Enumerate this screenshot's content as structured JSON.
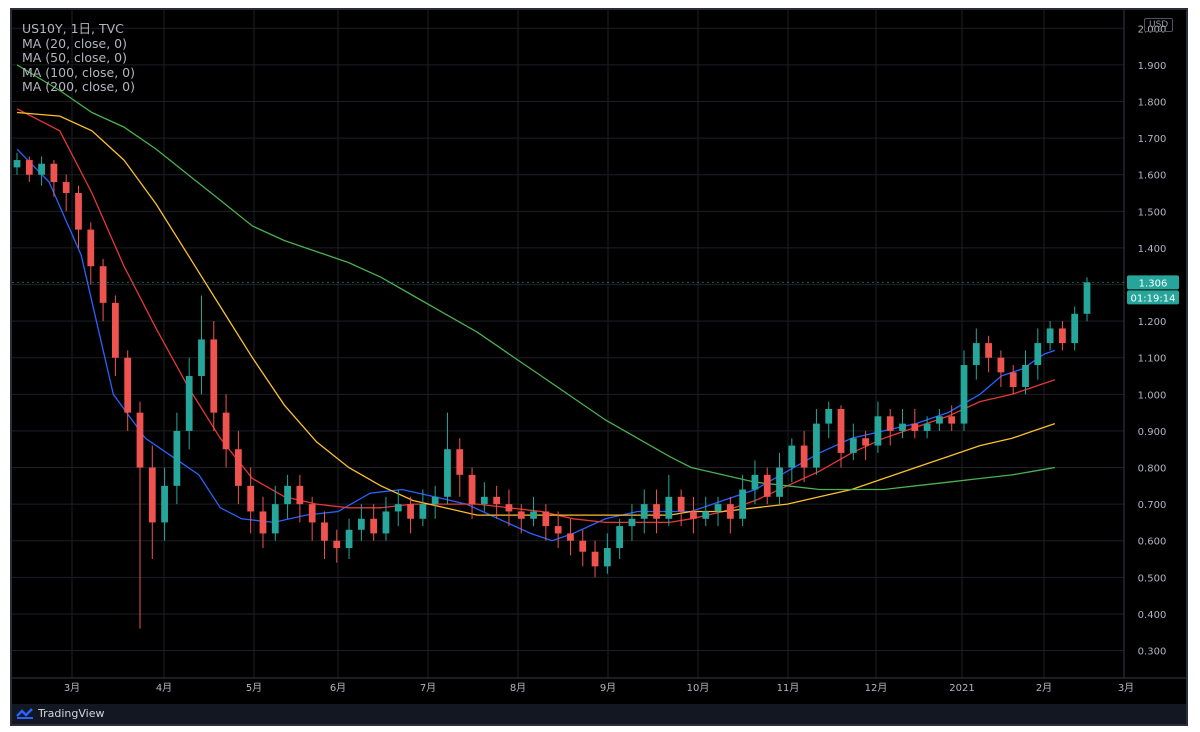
{
  "header": {
    "symbol_line": "US10Y, 1日, TVC",
    "ma_lines": [
      "MA (20, close, 0)",
      "MA (50, close, 0)",
      "MA (100, close, 0)",
      "MA (200, close, 0)"
    ]
  },
  "currency": "USD",
  "last_price_label": "1.306",
  "countdown_label": "01:19:14",
  "footer": {
    "brand": "TradingView"
  },
  "colors": {
    "background": "#000000",
    "up": "#26a69a",
    "down": "#ef5350",
    "ma20": "#2962ff",
    "ma50": "#e53935",
    "ma100": "#fbc02d",
    "ma200": "#4caf50",
    "price_tag": "#26a69a"
  },
  "chart_data": {
    "type": "candlestick",
    "y_ticks": [
      "2.000",
      "1.900",
      "1.800",
      "1.700",
      "1.600",
      "1.500",
      "1.400",
      "1.300",
      "1.200",
      "1.100",
      "1.000",
      "0.900",
      "0.800",
      "0.700",
      "0.600",
      "0.500",
      "0.400",
      "0.300"
    ],
    "x_ticks": [
      "3月",
      "4月",
      "5月",
      "6月",
      "7月",
      "8月",
      "9月",
      "10月",
      "11月",
      "12月",
      "2021",
      "2月",
      "3月"
    ],
    "ylim": [
      0.225,
      2.05
    ],
    "series": [
      {
        "name": "MA (20, close, 0)",
        "points": [
          [
            0,
            1.67
          ],
          [
            0.03,
            1.58
          ],
          [
            0.06,
            1.38
          ],
          [
            0.09,
            1.0
          ],
          [
            0.12,
            0.88
          ],
          [
            0.15,
            0.82
          ],
          [
            0.17,
            0.78
          ],
          [
            0.19,
            0.69
          ],
          [
            0.21,
            0.66
          ],
          [
            0.24,
            0.65
          ],
          [
            0.27,
            0.67
          ],
          [
            0.3,
            0.68
          ],
          [
            0.33,
            0.73
          ],
          [
            0.36,
            0.74
          ],
          [
            0.39,
            0.72
          ],
          [
            0.42,
            0.7
          ],
          [
            0.45,
            0.66
          ],
          [
            0.48,
            0.62
          ],
          [
            0.5,
            0.6
          ],
          [
            0.52,
            0.62
          ],
          [
            0.55,
            0.66
          ],
          [
            0.58,
            0.68
          ],
          [
            0.61,
            0.68
          ],
          [
            0.63,
            0.68
          ],
          [
            0.66,
            0.71
          ],
          [
            0.69,
            0.74
          ],
          [
            0.72,
            0.79
          ],
          [
            0.75,
            0.84
          ],
          [
            0.78,
            0.88
          ],
          [
            0.81,
            0.9
          ],
          [
            0.84,
            0.92
          ],
          [
            0.87,
            0.95
          ],
          [
            0.9,
            1.0
          ],
          [
            0.92,
            1.05
          ],
          [
            0.94,
            1.07
          ],
          [
            0.96,
            1.11
          ],
          [
            0.97,
            1.12
          ]
        ]
      },
      {
        "name": "MA (50, close, 0)",
        "points": [
          [
            0,
            1.78
          ],
          [
            0.04,
            1.72
          ],
          [
            0.07,
            1.55
          ],
          [
            0.1,
            1.35
          ],
          [
            0.13,
            1.18
          ],
          [
            0.16,
            1.02
          ],
          [
            0.19,
            0.88
          ],
          [
            0.22,
            0.77
          ],
          [
            0.25,
            0.72
          ],
          [
            0.28,
            0.7
          ],
          [
            0.31,
            0.69
          ],
          [
            0.34,
            0.69
          ],
          [
            0.37,
            0.7
          ],
          [
            0.4,
            0.7
          ],
          [
            0.43,
            0.7
          ],
          [
            0.46,
            0.69
          ],
          [
            0.49,
            0.68
          ],
          [
            0.52,
            0.66
          ],
          [
            0.55,
            0.65
          ],
          [
            0.58,
            0.65
          ],
          [
            0.61,
            0.65
          ],
          [
            0.63,
            0.66
          ],
          [
            0.66,
            0.68
          ],
          [
            0.69,
            0.71
          ],
          [
            0.72,
            0.75
          ],
          [
            0.75,
            0.79
          ],
          [
            0.78,
            0.84
          ],
          [
            0.81,
            0.88
          ],
          [
            0.84,
            0.91
          ],
          [
            0.87,
            0.94
          ],
          [
            0.9,
            0.98
          ],
          [
            0.93,
            1.0
          ],
          [
            0.95,
            1.02
          ],
          [
            0.97,
            1.04
          ]
        ]
      },
      {
        "name": "MA (100, close, 0)",
        "points": [
          [
            0,
            1.77
          ],
          [
            0.04,
            1.76
          ],
          [
            0.07,
            1.72
          ],
          [
            0.1,
            1.64
          ],
          [
            0.13,
            1.52
          ],
          [
            0.16,
            1.38
          ],
          [
            0.19,
            1.24
          ],
          [
            0.22,
            1.1
          ],
          [
            0.25,
            0.97
          ],
          [
            0.28,
            0.87
          ],
          [
            0.31,
            0.8
          ],
          [
            0.34,
            0.75
          ],
          [
            0.37,
            0.71
          ],
          [
            0.4,
            0.69
          ],
          [
            0.43,
            0.67
          ],
          [
            0.46,
            0.67
          ],
          [
            0.49,
            0.67
          ],
          [
            0.52,
            0.67
          ],
          [
            0.55,
            0.67
          ],
          [
            0.58,
            0.67
          ],
          [
            0.61,
            0.67
          ],
          [
            0.63,
            0.68
          ],
          [
            0.66,
            0.68
          ],
          [
            0.69,
            0.69
          ],
          [
            0.72,
            0.7
          ],
          [
            0.75,
            0.72
          ],
          [
            0.78,
            0.74
          ],
          [
            0.81,
            0.77
          ],
          [
            0.84,
            0.8
          ],
          [
            0.87,
            0.83
          ],
          [
            0.9,
            0.86
          ],
          [
            0.93,
            0.88
          ],
          [
            0.95,
            0.9
          ],
          [
            0.97,
            0.92
          ]
        ]
      },
      {
        "name": "MA (200, close, 0)",
        "points": [
          [
            0,
            1.9
          ],
          [
            0.04,
            1.83
          ],
          [
            0.07,
            1.77
          ],
          [
            0.1,
            1.73
          ],
          [
            0.13,
            1.67
          ],
          [
            0.16,
            1.6
          ],
          [
            0.19,
            1.53
          ],
          [
            0.22,
            1.46
          ],
          [
            0.25,
            1.42
          ],
          [
            0.28,
            1.39
          ],
          [
            0.31,
            1.36
          ],
          [
            0.34,
            1.32
          ],
          [
            0.37,
            1.27
          ],
          [
            0.4,
            1.22
          ],
          [
            0.43,
            1.17
          ],
          [
            0.46,
            1.11
          ],
          [
            0.49,
            1.05
          ],
          [
            0.52,
            0.99
          ],
          [
            0.55,
            0.93
          ],
          [
            0.58,
            0.88
          ],
          [
            0.61,
            0.83
          ],
          [
            0.63,
            0.8
          ],
          [
            0.66,
            0.78
          ],
          [
            0.69,
            0.76
          ],
          [
            0.72,
            0.75
          ],
          [
            0.75,
            0.74
          ],
          [
            0.78,
            0.74
          ],
          [
            0.81,
            0.74
          ],
          [
            0.84,
            0.75
          ],
          [
            0.87,
            0.76
          ],
          [
            0.9,
            0.77
          ],
          [
            0.93,
            0.78
          ],
          [
            0.95,
            0.79
          ],
          [
            0.97,
            0.8
          ]
        ]
      }
    ],
    "candles": [
      [
        1.62,
        1.64,
        1.6,
        1.66
      ],
      [
        1.64,
        1.6,
        1.58,
        1.65
      ],
      [
        1.6,
        1.63,
        1.57,
        1.65
      ],
      [
        1.63,
        1.58,
        1.54,
        1.64
      ],
      [
        1.58,
        1.55,
        1.5,
        1.6
      ],
      [
        1.55,
        1.45,
        1.4,
        1.57
      ],
      [
        1.45,
        1.35,
        1.3,
        1.47
      ],
      [
        1.35,
        1.25,
        1.2,
        1.37
      ],
      [
        1.25,
        1.1,
        1.05,
        1.27
      ],
      [
        1.1,
        0.95,
        0.9,
        1.12
      ],
      [
        0.95,
        0.8,
        0.36,
        0.98
      ],
      [
        0.8,
        0.65,
        0.55,
        0.86
      ],
      [
        0.65,
        0.75,
        0.6,
        0.8
      ],
      [
        0.75,
        0.9,
        0.7,
        0.95
      ],
      [
        0.9,
        1.05,
        0.85,
        1.1
      ],
      [
        1.05,
        1.15,
        1.0,
        1.27
      ],
      [
        1.15,
        0.95,
        0.9,
        1.2
      ],
      [
        0.95,
        0.85,
        0.8,
        1.0
      ],
      [
        0.85,
        0.75,
        0.7,
        0.9
      ],
      [
        0.75,
        0.68,
        0.62,
        0.8
      ],
      [
        0.68,
        0.62,
        0.58,
        0.72
      ],
      [
        0.62,
        0.7,
        0.6,
        0.75
      ],
      [
        0.7,
        0.75,
        0.66,
        0.78
      ],
      [
        0.75,
        0.7,
        0.65,
        0.78
      ],
      [
        0.7,
        0.65,
        0.6,
        0.72
      ],
      [
        0.65,
        0.6,
        0.55,
        0.68
      ],
      [
        0.6,
        0.58,
        0.54,
        0.63
      ],
      [
        0.58,
        0.63,
        0.55,
        0.66
      ],
      [
        0.63,
        0.66,
        0.6,
        0.7
      ],
      [
        0.66,
        0.62,
        0.6,
        0.7
      ],
      [
        0.62,
        0.68,
        0.6,
        0.72
      ],
      [
        0.68,
        0.7,
        0.64,
        0.74
      ],
      [
        0.7,
        0.66,
        0.62,
        0.72
      ],
      [
        0.66,
        0.7,
        0.64,
        0.74
      ],
      [
        0.7,
        0.72,
        0.66,
        0.75
      ],
      [
        0.72,
        0.85,
        0.7,
        0.95
      ],
      [
        0.85,
        0.78,
        0.72,
        0.88
      ],
      [
        0.78,
        0.7,
        0.66,
        0.8
      ],
      [
        0.7,
        0.72,
        0.68,
        0.76
      ],
      [
        0.72,
        0.7,
        0.66,
        0.75
      ],
      [
        0.7,
        0.68,
        0.64,
        0.74
      ],
      [
        0.68,
        0.66,
        0.62,
        0.7
      ],
      [
        0.66,
        0.68,
        0.64,
        0.72
      ],
      [
        0.68,
        0.64,
        0.6,
        0.7
      ],
      [
        0.64,
        0.62,
        0.58,
        0.68
      ],
      [
        0.62,
        0.6,
        0.56,
        0.66
      ],
      [
        0.6,
        0.57,
        0.53,
        0.63
      ],
      [
        0.57,
        0.53,
        0.5,
        0.6
      ],
      [
        0.53,
        0.58,
        0.51,
        0.62
      ],
      [
        0.58,
        0.64,
        0.55,
        0.66
      ],
      [
        0.64,
        0.66,
        0.6,
        0.7
      ],
      [
        0.66,
        0.7,
        0.62,
        0.74
      ],
      [
        0.7,
        0.66,
        0.62,
        0.74
      ],
      [
        0.66,
        0.72,
        0.64,
        0.78
      ],
      [
        0.72,
        0.68,
        0.64,
        0.74
      ],
      [
        0.68,
        0.66,
        0.62,
        0.72
      ],
      [
        0.66,
        0.68,
        0.64,
        0.72
      ],
      [
        0.68,
        0.7,
        0.64,
        0.72
      ],
      [
        0.7,
        0.66,
        0.62,
        0.72
      ],
      [
        0.66,
        0.74,
        0.64,
        0.78
      ],
      [
        0.74,
        0.78,
        0.7,
        0.82
      ],
      [
        0.78,
        0.72,
        0.7,
        0.8
      ],
      [
        0.72,
        0.8,
        0.7,
        0.84
      ],
      [
        0.8,
        0.86,
        0.76,
        0.88
      ],
      [
        0.86,
        0.8,
        0.76,
        0.9
      ],
      [
        0.8,
        0.92,
        0.78,
        0.96
      ],
      [
        0.92,
        0.96,
        0.88,
        0.98
      ],
      [
        0.96,
        0.84,
        0.8,
        0.97
      ],
      [
        0.84,
        0.88,
        0.82,
        0.92
      ],
      [
        0.88,
        0.86,
        0.82,
        0.9
      ],
      [
        0.86,
        0.94,
        0.84,
        0.98
      ],
      [
        0.94,
        0.9,
        0.86,
        0.96
      ],
      [
        0.9,
        0.92,
        0.88,
        0.96
      ],
      [
        0.92,
        0.9,
        0.88,
        0.96
      ],
      [
        0.9,
        0.92,
        0.88,
        0.94
      ],
      [
        0.92,
        0.94,
        0.9,
        0.96
      ],
      [
        0.94,
        0.92,
        0.9,
        0.97
      ],
      [
        0.92,
        1.08,
        0.9,
        1.12
      ],
      [
        1.08,
        1.14,
        1.04,
        1.18
      ],
      [
        1.14,
        1.1,
        1.06,
        1.16
      ],
      [
        1.1,
        1.06,
        1.02,
        1.12
      ],
      [
        1.06,
        1.02,
        1.0,
        1.08
      ],
      [
        1.02,
        1.08,
        1.0,
        1.12
      ],
      [
        1.08,
        1.14,
        1.04,
        1.18
      ],
      [
        1.14,
        1.18,
        1.12,
        1.2
      ],
      [
        1.18,
        1.14,
        1.12,
        1.2
      ],
      [
        1.14,
        1.22,
        1.12,
        1.24
      ],
      [
        1.22,
        1.306,
        1.2,
        1.32
      ]
    ]
  }
}
